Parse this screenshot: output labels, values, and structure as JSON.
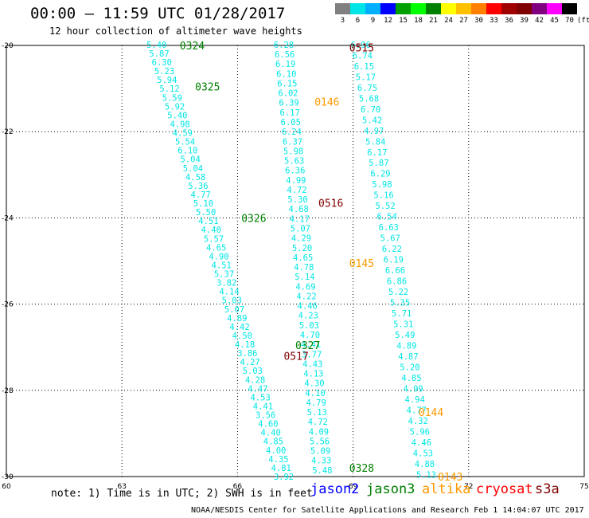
{
  "header": {
    "title": "00:00 — 11:59 UTC 01/28/2017",
    "subtitle": "12 hour collection of altimeter wave heights"
  },
  "colorbar": {
    "colors": [
      "#808080",
      "#00e5e5",
      "#00b0ff",
      "#0000ff",
      "#00a000",
      "#00ff00",
      "#008000",
      "#ffff00",
      "#ffc000",
      "#ff8000",
      "#ff0000",
      "#a00000",
      "#800000",
      "#800080",
      "#ff00ff",
      "#000000"
    ],
    "labels": [
      "3",
      "6",
      "9",
      "12",
      "15",
      "18",
      "21",
      "24",
      "27",
      "30",
      "33",
      "36",
      "39",
      "42",
      "45",
      "70",
      "(ft)"
    ]
  },
  "note": "note:  1) Time is in UTC;  2) SWH is in feet",
  "legend": [
    {
      "label": "jason2",
      "color": "#0000ff"
    },
    {
      "label": "jason3",
      "color": "#008000"
    },
    {
      "label": "altika",
      "color": "#ff9900"
    },
    {
      "label": "cryosat",
      "color": "#ff0000"
    },
    {
      "label": "s3a",
      "color": "#800000"
    }
  ],
  "credit": "NOAA/NESDIS Center for Satellite Applications and Research    Feb  1 14:04:07 UTC 2017",
  "chart_data": {
    "type": "scatter",
    "title": "00:00 — 11:59 UTC 01/28/2017",
    "xlim": [
      60,
      75
    ],
    "ylim": [
      -30,
      -20
    ],
    "x_ticks": [
      "60",
      "63",
      "66",
      "69",
      "72",
      "75"
    ],
    "y_ticks": [
      "-20",
      "-22",
      "-24",
      "-26",
      "-28",
      "-30"
    ],
    "grid": true,
    "point_color": "#00e5e5",
    "tracks": [
      {
        "x0": 63.9,
        "y0": -19.98,
        "x1": 67.2,
        "y1": -30.0,
        "start_index": 0,
        "values": [
          "5.40",
          "5.87",
          "6.30",
          "5.23",
          "5.94",
          "5.12",
          "5.59",
          "5.92",
          "5.40",
          "4.98",
          "4.59",
          "5.54",
          "6.10",
          "5.04",
          "5.04",
          "4.58",
          "5.36",
          "4.77",
          "5.10",
          "5.50",
          "4.51",
          "4.40",
          "5.57",
          "4.65",
          "4.90",
          "4.51",
          "5.37",
          "3.82",
          "4.14",
          "5.03",
          "5.07",
          "4.89",
          "4.42",
          "4.50",
          "4.18",
          "3.86",
          "4.27",
          "5.03",
          "4.28",
          "4.47",
          "4.53",
          "4.41",
          "3.56",
          "4.60",
          "4.40",
          "4.85",
          "4.00",
          "4.35",
          "4.81",
          "3.92"
        ]
      },
      {
        "x0": 67.2,
        "y0": -19.98,
        "x1": 68.2,
        "y1": -29.85,
        "start_index": 0,
        "values": [
          "6.28",
          "6.56",
          "6.19",
          "6.10",
          "6.15",
          "6.02",
          "6.39",
          "6.17",
          "6.05",
          "6.24",
          "6.37",
          "5.98",
          "5.63",
          "6.36",
          "4.99",
          "4.72",
          "5.30",
          "4.68",
          "4.17",
          "5.07",
          "4.29",
          "5.20",
          "4.65",
          "4.78",
          "5.14",
          "4.69",
          "4.22",
          "4.46",
          "4.23",
          "5.03",
          "4.70",
          "4.41",
          "3.77",
          "4.43",
          "4.13",
          "4.30",
          "4.10",
          "4.79",
          "5.13",
          "4.72",
          "4.09",
          "5.56",
          "5.09",
          "4.33",
          "5.48"
        ]
      },
      {
        "x0": 69.2,
        "y0": -19.98,
        "x1": 70.9,
        "y1": -29.95,
        "start_index": 0,
        "values": [
          "6.96",
          "6.74",
          "6.15",
          "5.17",
          "6.75",
          "5.68",
          "6.70",
          "5.42",
          "4.97",
          "5.84",
          "6.17",
          "5.87",
          "6.29",
          "5.98",
          "5.16",
          "5.52",
          "6.54",
          "6.63",
          "5.67",
          "6.22",
          "6.19",
          "6.66",
          "6.86",
          "5.22",
          "5.35",
          "5.71",
          "5.31",
          "5.49",
          "4.89",
          "4.87",
          "5.20",
          "4.85",
          "4.99",
          "4.94",
          "4.77",
          "4.32",
          "5.96",
          "4.46",
          "4.53",
          "4.88",
          "5.13"
        ]
      }
    ],
    "pass_labels": [
      {
        "text": "0324",
        "x": 64.5,
        "y": -20.0,
        "color": "#008000"
      },
      {
        "text": "0325",
        "x": 64.9,
        "y": -20.95,
        "color": "#008000"
      },
      {
        "text": "0515",
        "x": 68.9,
        "y": -20.05,
        "color": "#800000"
      },
      {
        "text": "0146",
        "x": 68.0,
        "y": -21.3,
        "color": "#ff9900"
      },
      {
        "text": "0516",
        "x": 68.1,
        "y": -23.65,
        "color": "#800000"
      },
      {
        "text": "0326",
        "x": 66.1,
        "y": -24.0,
        "color": "#008000"
      },
      {
        "text": "0145",
        "x": 68.9,
        "y": -25.05,
        "color": "#ff9900"
      },
      {
        "text": "0327",
        "x": 67.5,
        "y": -26.95,
        "color": "#008000"
      },
      {
        "text": "0517",
        "x": 67.2,
        "y": -27.2,
        "color": "#800000"
      },
      {
        "text": "0144",
        "x": 70.7,
        "y": -28.5,
        "color": "#ff9900"
      },
      {
        "text": "0328",
        "x": 68.9,
        "y": -29.8,
        "color": "#008000"
      },
      {
        "text": "0143",
        "x": 71.2,
        "y": -30.0,
        "color": "#ff9900"
      }
    ]
  }
}
